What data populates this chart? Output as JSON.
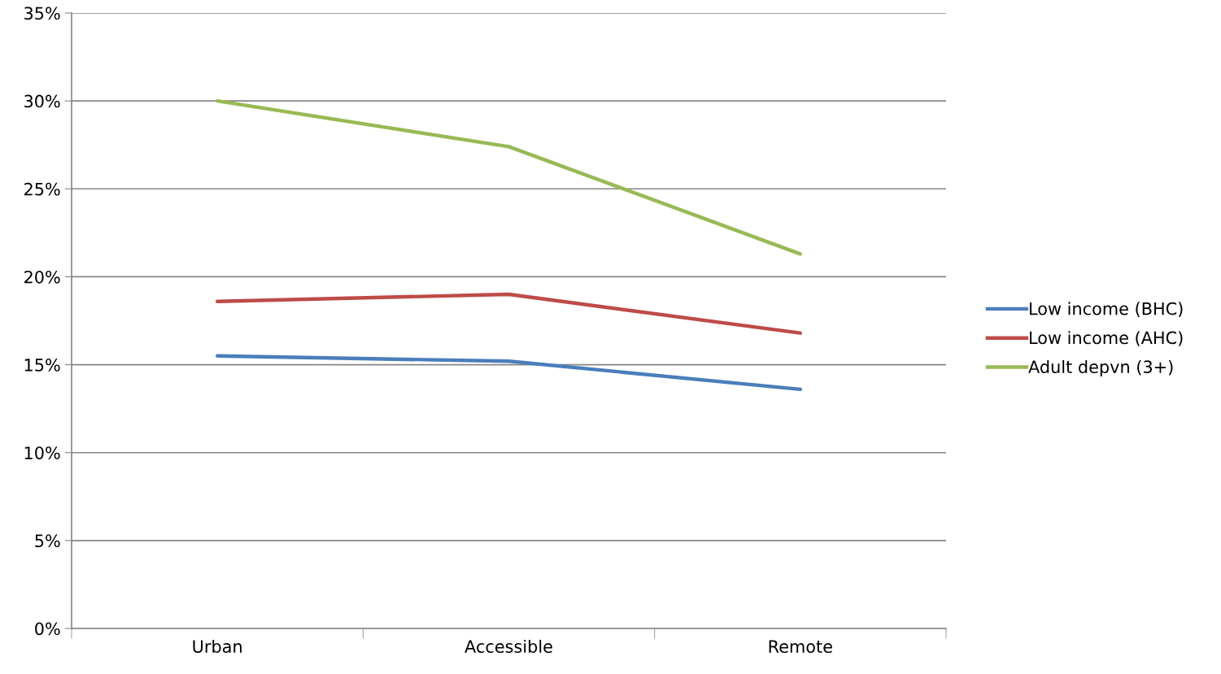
{
  "chart_data": {
    "type": "line",
    "categories": [
      "Urban",
      "Accessible",
      "Remote"
    ],
    "series": [
      {
        "name": "Low income (BHC)",
        "color": "#4a7ebb",
        "values": [
          15.5,
          15.2,
          13.6
        ]
      },
      {
        "name": "Low income (AHC)",
        "color": "#be4b48",
        "values": [
          18.6,
          19.0,
          16.8
        ]
      },
      {
        "name": "Adult depvn (3+)",
        "color": "#98b954",
        "values": [
          30.0,
          27.4,
          21.3
        ]
      }
    ],
    "ylim": [
      0,
      35
    ],
    "yticks": [
      {
        "value": 0,
        "label": "0%"
      },
      {
        "value": 5,
        "label": "5%"
      },
      {
        "value": 10,
        "label": "10%"
      },
      {
        "value": 15,
        "label": "15%"
      },
      {
        "value": 20,
        "label": "20%"
      },
      {
        "value": 25,
        "label": "25%"
      },
      {
        "value": 30,
        "label": "30%"
      },
      {
        "value": 35,
        "label": "35%"
      }
    ],
    "grid": "y",
    "legend": "right",
    "marker": "none",
    "line_style": "solid"
  }
}
